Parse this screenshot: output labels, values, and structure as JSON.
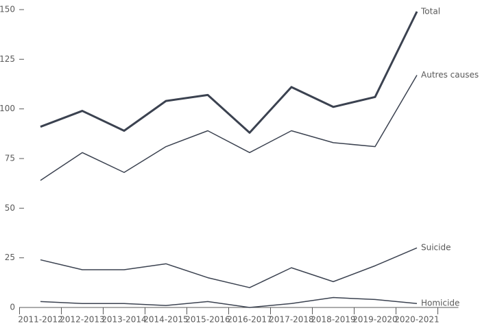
{
  "chart_data": {
    "type": "line",
    "categories": [
      "2011-2012",
      "2012-2013",
      "2013-2014",
      "2014-2015",
      "2015-2016",
      "2016-2017",
      "2017-2018",
      "2018-2019",
      "2019-2020",
      "2020-2021"
    ],
    "series": [
      {
        "name": "Total",
        "color": "#3b4250",
        "linewidth": 3,
        "values": [
          91,
          99,
          89,
          104,
          107,
          88,
          111,
          101,
          106,
          149
        ]
      },
      {
        "name": "Autres causes",
        "color": "#3b4250",
        "linewidth": 1.5,
        "values": [
          64,
          78,
          68,
          81,
          89,
          78,
          89,
          83,
          81,
          117
        ]
      },
      {
        "name": "Suicide",
        "color": "#3b4250",
        "linewidth": 1.5,
        "values": [
          24,
          19,
          19,
          22,
          15,
          10,
          20,
          13,
          21,
          30
        ]
      },
      {
        "name": "Homicide",
        "color": "#3b4250",
        "linewidth": 1.5,
        "values": [
          3,
          2,
          2,
          1,
          3,
          0,
          2,
          5,
          4,
          2
        ]
      }
    ],
    "ylim": [
      0,
      150
    ],
    "yticks": [
      0,
      25,
      50,
      75,
      100,
      125,
      150
    ],
    "grid": false
  }
}
